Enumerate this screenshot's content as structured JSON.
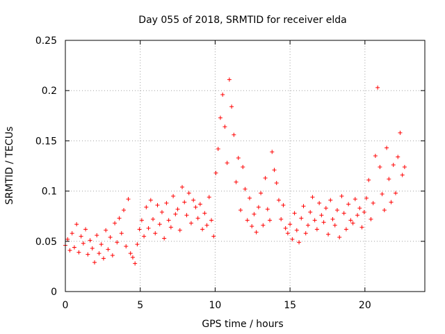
{
  "chart_data": {
    "type": "scatter",
    "title": "Day 055 of 2018, SRMTID for receiver elda",
    "xlabel": "GPS time / hours",
    "ylabel": "SRMTID / TECUs",
    "xlim": [
      0,
      24
    ],
    "ylim": [
      0,
      0.25
    ],
    "x_ticks": [
      0,
      5,
      10,
      15,
      20
    ],
    "x_tick_labels": [
      "0",
      "5",
      "10",
      "15",
      "20"
    ],
    "y_ticks": [
      0,
      0.05,
      0.1,
      0.15,
      0.2,
      0.25
    ],
    "y_tick_labels": [
      "0",
      "0.05",
      "0.1",
      "0.15",
      "0.2",
      "0.25"
    ],
    "grid": true,
    "marker": "plus",
    "color": "#ff0000",
    "series": [
      {
        "name": "SRMTID",
        "x": [
          0.0,
          0.15,
          0.3,
          0.45,
          0.6,
          0.75,
          0.9,
          1.05,
          1.2,
          1.35,
          1.5,
          1.65,
          1.8,
          1.95,
          2.1,
          2.25,
          2.4,
          2.55,
          2.7,
          2.85,
          3.0,
          3.15,
          3.3,
          3.45,
          3.6,
          3.75,
          3.9,
          4.05,
          4.2,
          4.35,
          4.5,
          4.65,
          4.8,
          4.95,
          5.1,
          5.25,
          5.4,
          5.55,
          5.7,
          5.85,
          6.0,
          6.15,
          6.3,
          6.45,
          6.6,
          6.75,
          6.9,
          7.05,
          7.2,
          7.35,
          7.5,
          7.65,
          7.8,
          7.95,
          8.1,
          8.25,
          8.4,
          8.55,
          8.7,
          8.85,
          9.0,
          9.15,
          9.3,
          9.45,
          9.6,
          9.75,
          9.9,
          10.05,
          10.2,
          10.35,
          10.5,
          10.65,
          10.8,
          10.95,
          11.1,
          11.25,
          11.4,
          11.55,
          11.7,
          11.85,
          12.0,
          12.15,
          12.3,
          12.45,
          12.6,
          12.75,
          12.9,
          13.05,
          13.2,
          13.35,
          13.5,
          13.65,
          13.8,
          13.95,
          14.1,
          14.25,
          14.4,
          14.55,
          14.7,
          14.85,
          15.0,
          15.15,
          15.3,
          15.45,
          15.6,
          15.75,
          15.9,
          16.05,
          16.2,
          16.35,
          16.5,
          16.65,
          16.8,
          16.95,
          17.1,
          17.25,
          17.4,
          17.55,
          17.7,
          17.85,
          18.0,
          18.15,
          18.3,
          18.45,
          18.6,
          18.75,
          18.9,
          19.05,
          19.2,
          19.35,
          19.5,
          19.65,
          19.8,
          19.95,
          20.1,
          20.25,
          20.4,
          20.55,
          20.7,
          20.85,
          21.0,
          21.15,
          21.3,
          21.45,
          21.6,
          21.75,
          21.9,
          22.05,
          22.2,
          22.35,
          22.5,
          22.65
        ],
        "y": [
          0.046,
          0.052,
          0.041,
          0.058,
          0.044,
          0.067,
          0.039,
          0.055,
          0.048,
          0.062,
          0.037,
          0.051,
          0.043,
          0.029,
          0.056,
          0.038,
          0.047,
          0.033,
          0.061,
          0.042,
          0.054,
          0.036,
          0.068,
          0.049,
          0.073,
          0.058,
          0.081,
          0.045,
          0.092,
          0.038,
          0.034,
          0.028,
          0.047,
          0.062,
          0.071,
          0.055,
          0.084,
          0.063,
          0.091,
          0.072,
          0.058,
          0.086,
          0.067,
          0.079,
          0.053,
          0.088,
          0.071,
          0.064,
          0.095,
          0.077,
          0.082,
          0.061,
          0.104,
          0.089,
          0.076,
          0.098,
          0.068,
          0.091,
          0.084,
          0.073,
          0.087,
          0.062,
          0.078,
          0.066,
          0.094,
          0.071,
          0.055,
          0.118,
          0.142,
          0.173,
          0.196,
          0.164,
          0.128,
          0.211,
          0.184,
          0.156,
          0.109,
          0.133,
          0.081,
          0.124,
          0.102,
          0.071,
          0.093,
          0.065,
          0.077,
          0.059,
          0.084,
          0.098,
          0.066,
          0.113,
          0.082,
          0.071,
          0.139,
          0.121,
          0.108,
          0.091,
          0.072,
          0.086,
          0.063,
          0.058,
          0.067,
          0.052,
          0.078,
          0.061,
          0.049,
          0.073,
          0.085,
          0.058,
          0.066,
          0.079,
          0.094,
          0.071,
          0.062,
          0.088,
          0.076,
          0.069,
          0.083,
          0.057,
          0.091,
          0.072,
          0.066,
          0.081,
          0.054,
          0.095,
          0.078,
          0.062,
          0.087,
          0.071,
          0.068,
          0.092,
          0.076,
          0.083,
          0.064,
          0.079,
          0.093,
          0.111,
          0.072,
          0.088,
          0.135,
          0.203,
          0.124,
          0.097,
          0.081,
          0.143,
          0.112,
          0.089,
          0.126,
          0.098,
          0.134,
          0.158,
          0.116,
          0.124
        ]
      }
    ]
  }
}
